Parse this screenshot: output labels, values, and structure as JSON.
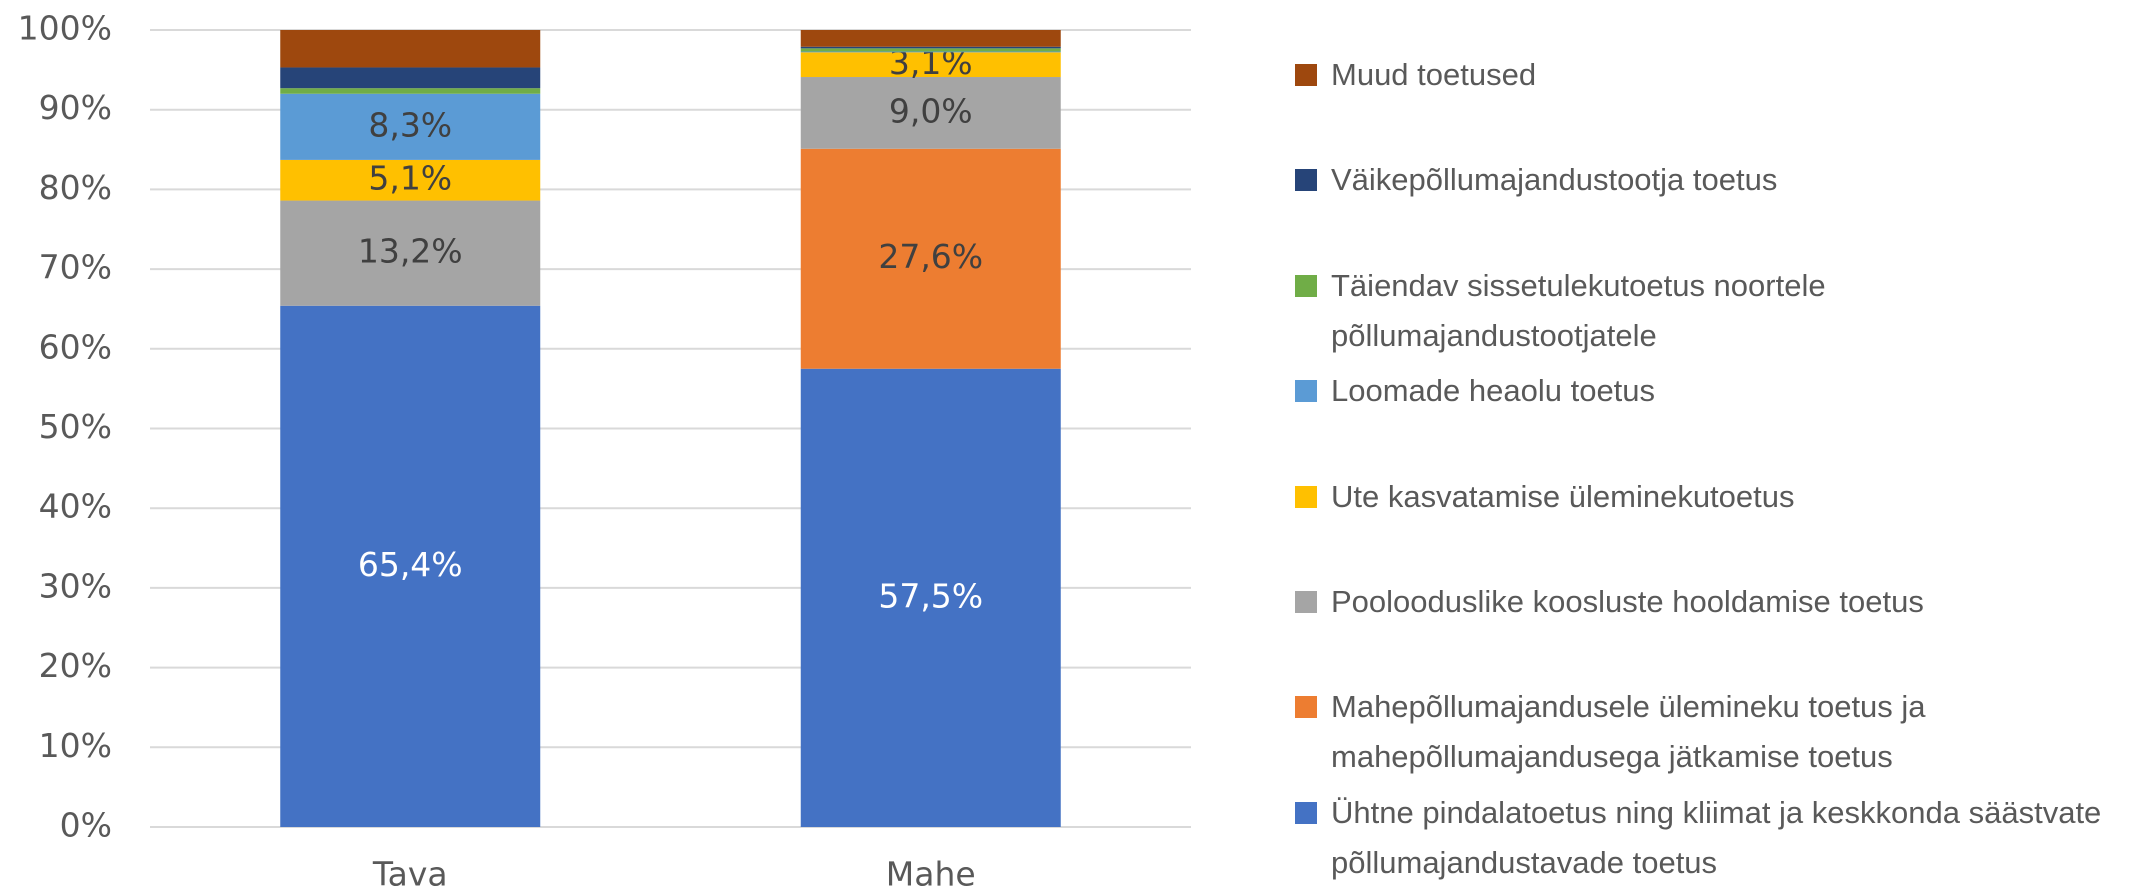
{
  "chart_data": {
    "type": "stacked_bar",
    "categories": [
      "Tava",
      "Mahe"
    ],
    "ylim": [
      0,
      100
    ],
    "yticks": [
      {
        "value": 0,
        "label": "0%"
      },
      {
        "value": 10,
        "label": "10%"
      },
      {
        "value": 20,
        "label": "20%"
      },
      {
        "value": 30,
        "label": "30%"
      },
      {
        "value": 40,
        "label": "40%"
      },
      {
        "value": 50,
        "label": "50%"
      },
      {
        "value": 60,
        "label": "60%"
      },
      {
        "value": 70,
        "label": "70%"
      },
      {
        "value": 80,
        "label": "80%"
      },
      {
        "value": 90,
        "label": "90%"
      },
      {
        "value": 100,
        "label": "100%"
      }
    ],
    "grid": true,
    "legend": "right",
    "series": [
      {
        "name": "Ühtne pindalatoetus ning kliimat ja keskkonda säästvate põllumajandustavade toetus",
        "color": "#4472c4",
        "label_color": "#ffffff",
        "values": [
          65.4,
          57.5
        ],
        "value_labels": [
          "65,4%",
          "57,5%"
        ]
      },
      {
        "name": "Mahepõllumajandusele ülemineku toetus ja mahepõllumajandusega jätkamise toetus",
        "color": "#ed7d31",
        "label_color": "#404040",
        "values": [
          0,
          27.6
        ],
        "value_labels": [
          null,
          "27,6%"
        ]
      },
      {
        "name": "Poolooduslike koosluste hooldamise toetus",
        "color": "#a5a5a5",
        "label_color": "#404040",
        "values": [
          13.2,
          9.0
        ],
        "value_labels": [
          "13,2%",
          "9,0%"
        ]
      },
      {
        "name": "Ute kasvatamise üleminekutoetus",
        "color": "#ffc000",
        "label_color": "#404040",
        "values": [
          5.1,
          3.1
        ],
        "value_labels": [
          "5,1%",
          "3,1%"
        ]
      },
      {
        "name": "Loomade heaolu toetus",
        "color": "#5b9bd5",
        "label_color": "#404040",
        "values": [
          8.3,
          0.1
        ],
        "value_labels": [
          "8,3%",
          null
        ]
      },
      {
        "name": "Täiendav sissetulekutoetus noortele põllumajandustootjatele",
        "color": "#70ad47",
        "label_color": "#404040",
        "values": [
          0.7,
          0.4
        ],
        "value_labels": [
          null,
          null
        ]
      },
      {
        "name": "Väikepõllumajandustootja toetus",
        "color": "#264478",
        "label_color": "#404040",
        "values": [
          2.6,
          0.2
        ],
        "value_labels": [
          null,
          null
        ]
      },
      {
        "name": "Muud toetused",
        "color": "#9e480e",
        "label_color": "#404040",
        "values": [
          4.7,
          2.1
        ],
        "value_labels": [
          null,
          null
        ]
      }
    ]
  }
}
